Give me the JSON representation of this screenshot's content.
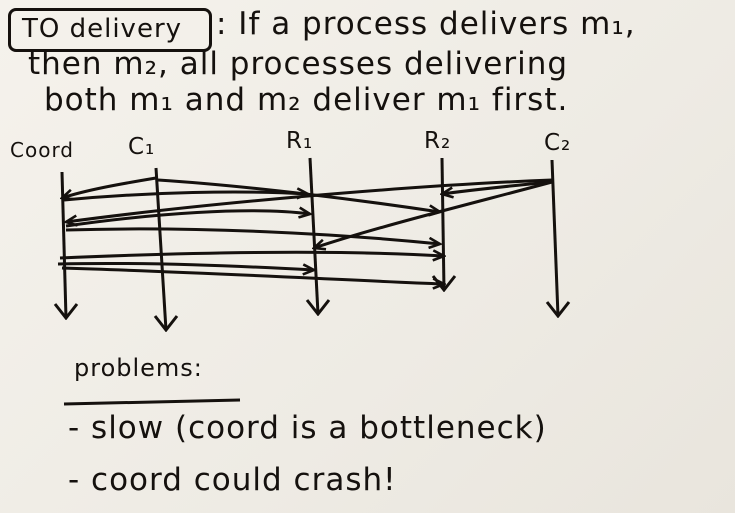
{
  "definition": {
    "term": "TO delivery",
    "line1": ": If a process delivers m₁,",
    "line2": "then m₂, all processes delivering",
    "line3": "both m₁ and m₂ deliver m₁ first."
  },
  "processes": [
    "Coord",
    "C₁",
    "R₁",
    "R₂",
    "C₂"
  ],
  "problems": {
    "heading": "problems:",
    "items": [
      "- slow (coord is a bottleneck)",
      "- coord could crash!"
    ]
  },
  "colors": {
    "ink": "#15110e",
    "board": "#f2efe9"
  }
}
